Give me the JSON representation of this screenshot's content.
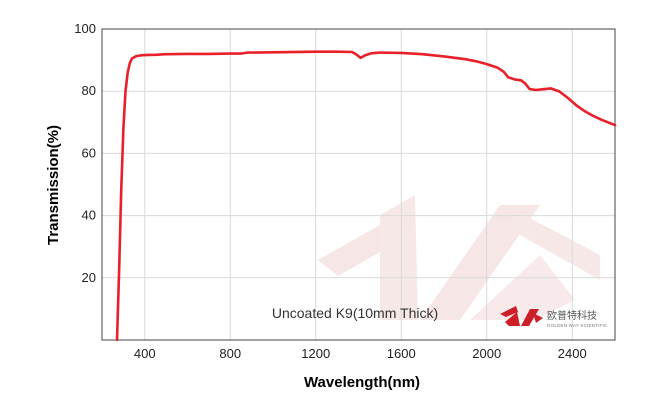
{
  "chart_data": {
    "type": "line",
    "title": "",
    "xlabel": "Wavelength(nm)",
    "ylabel": "Transmission(%)",
    "xlim": [
      200,
      2600
    ],
    "ylim": [
      0,
      100
    ],
    "xticks": [
      400,
      800,
      1200,
      1600,
      2000,
      2400
    ],
    "yticks": [
      20,
      40,
      60,
      80,
      100
    ],
    "grid": true,
    "legend": "none",
    "annotation": "Uncoated K9(10mm Thick)",
    "series": [
      {
        "color": "#e8202a",
        "x": [
          270,
          280,
          290,
          300,
          310,
          320,
          330,
          340,
          360,
          380,
          400,
          450,
          500,
          600,
          700,
          800,
          850,
          880,
          1000,
          1200,
          1300,
          1370,
          1390,
          1410,
          1430,
          1460,
          1500,
          1600,
          1700,
          1800,
          1900,
          1950,
          2000,
          2050,
          2080,
          2100,
          2130,
          2160,
          2180,
          2200,
          2230,
          2260,
          2300,
          2340,
          2380,
          2420,
          2460,
          2500,
          2540,
          2600
        ],
        "y": [
          0,
          22,
          48,
          68,
          80,
          86,
          89,
          90.5,
          91.3,
          91.5,
          91.6,
          91.7,
          91.9,
          92.0,
          92.0,
          92.1,
          92.1,
          92.4,
          92.5,
          92.7,
          92.7,
          92.6,
          91.8,
          90.7,
          91.5,
          92.2,
          92.4,
          92.3,
          91.9,
          91.2,
          90.3,
          89.6,
          88.7,
          87.6,
          86.2,
          84.5,
          83.8,
          83.5,
          82.5,
          80.7,
          80.4,
          80.6,
          80.9,
          79.9,
          77.8,
          75.4,
          73.5,
          72.0,
          70.7,
          69.1
        ]
      }
    ]
  },
  "logo": {
    "name_cn": "欧普特科技",
    "name_en": "GOLDEN WAY SCIENTIFIC",
    "colors": {
      "primary": "#cc1f27",
      "watermark": "#f6e4e4"
    }
  }
}
